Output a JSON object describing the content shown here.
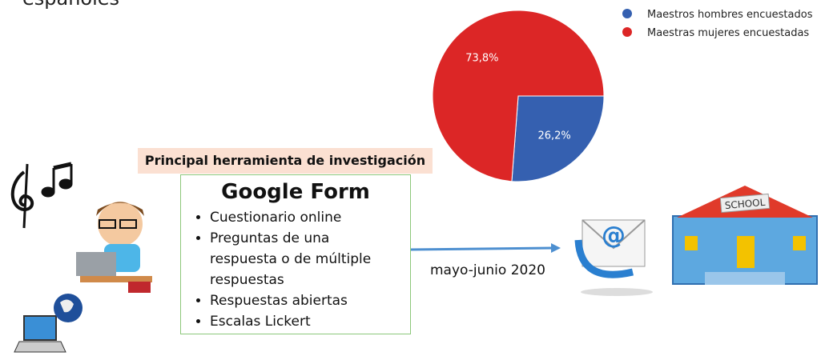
{
  "header": {
    "fragment": "españoles"
  },
  "chart_data": {
    "type": "pie",
    "categories": [
      "Maestros hombres encuestados",
      "Maestras mujeres encuestadas"
    ],
    "values": [
      26.2,
      73.8
    ],
    "value_labels": [
      "26,2%",
      "73,8%"
    ],
    "colors": [
      "#3560b0",
      "#dc2626"
    ],
    "legend": "top-right"
  },
  "tool": {
    "title": "Principal herramienta de investigación",
    "heading": "Google Form",
    "bullets": [
      "Cuestionario online",
      "Preguntas de una respuesta o de múltiple respuestas",
      "Respuestas abiertas",
      "Escalas Lickert"
    ]
  },
  "arrow_label": "mayo-junio 2020",
  "school_sign": "SCHOOL"
}
